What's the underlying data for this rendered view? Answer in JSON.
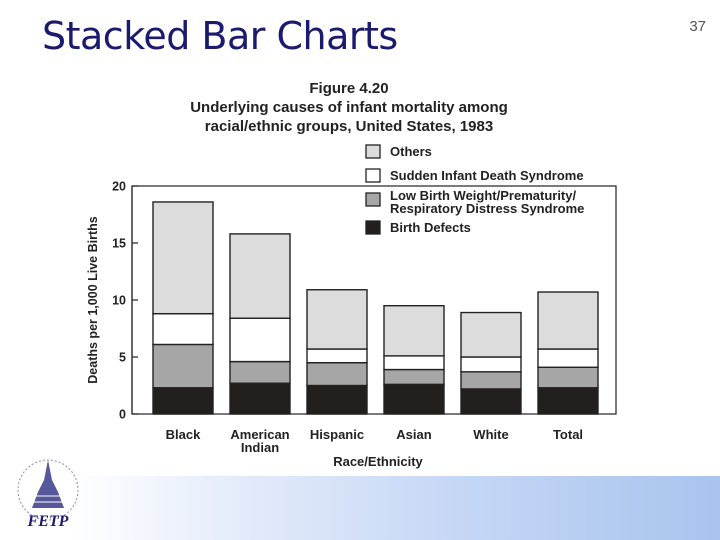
{
  "slide": {
    "title": "Stacked Bar Charts",
    "number": "37",
    "logo_text": "FETP"
  },
  "colors": {
    "others": "#dcdcdc",
    "sids": "#ffffff",
    "lbw": "#a6a6a6",
    "birth_defects": "#231f1c",
    "outline": "#222222"
  },
  "chart_data": {
    "type": "bar",
    "stacked": true,
    "title": "Figure 4.20",
    "subtitle": "Underlying causes of infant mortality among racial/ethnic groups, United States, 1983",
    "xlabel": "Race/Ethnicity",
    "ylabel": "Deaths per 1,000 Live Births",
    "ylim": [
      0,
      20
    ],
    "yticks": [
      0,
      5,
      10,
      15,
      20
    ],
    "grid": false,
    "legend_position": "top-right",
    "categories": [
      "Black",
      "American Indian",
      "Hispanic",
      "Asian",
      "White",
      "Total"
    ],
    "series": [
      {
        "name": "Birth Defects",
        "key": "birth_defects",
        "values": [
          2.3,
          2.7,
          2.5,
          2.6,
          2.2,
          2.3
        ]
      },
      {
        "name": "Low Birth Weight/Prematurity/ Respiratory Distress Syndrome",
        "key": "lbw",
        "values": [
          3.8,
          1.9,
          2.0,
          1.3,
          1.5,
          1.8
        ]
      },
      {
        "name": "Sudden Infant Death Syndrome",
        "key": "sids",
        "values": [
          2.7,
          3.8,
          1.2,
          1.2,
          1.3,
          1.6
        ]
      },
      {
        "name": "Others",
        "key": "others",
        "values": [
          9.8,
          7.4,
          5.2,
          4.4,
          3.9,
          5.0
        ]
      }
    ],
    "legend_order": [
      "others",
      "sids",
      "lbw",
      "birth_defects"
    ]
  }
}
